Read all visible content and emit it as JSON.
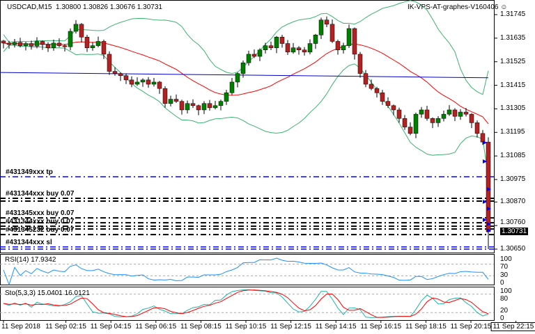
{
  "header": {
    "symbol": "USDCAD,M15",
    "ohlc": "1.30800 1.30826 1.30676 1.30731",
    "expert": "IK-VPS-AT-graphes-V160406",
    "expert_icon": "smiley-icon"
  },
  "price_axis": [
    "1.31745",
    "1.31635",
    "1.31525",
    "1.31415",
    "1.31305",
    "1.31195",
    "1.31085",
    "1.30975",
    "1.30870",
    "1.30760",
    "1.30650"
  ],
  "current_price": "1.30731",
  "time_axis": [
    "11 Sep 2018",
    "11 Sep 02:15",
    "11 Sep 04:15",
    "11 Sep 06:15",
    "11 Sep 08:15",
    "11 Sep 10:15",
    "11 Sep 12:15",
    "11 Sep 14:15",
    "11 Sep 16:15",
    "11 Sep 18:15",
    "11 Sep 20:15",
    "11 Sep 22:15"
  ],
  "orders": [
    {
      "label": "#431349xxx tp",
      "price": 1.30988,
      "color": "#0000ff"
    },
    {
      "label": "#431344xxx buy 0.07",
      "price": 1.30887,
      "color": "#000000"
    },
    {
      "label": "",
      "price": 1.30874,
      "color": "#000000"
    },
    {
      "label": "#431345xxx buy 0.07",
      "price": 1.30796,
      "color": "#000000"
    },
    {
      "label": "",
      "price": 1.30773,
      "color": "#000000"
    },
    {
      "label": "#431344xxx buy 0.07",
      "price": 1.30757,
      "color": "#000000"
    },
    {
      "label": "",
      "price": 1.30744,
      "color": "#000000"
    },
    {
      "label": "#431345232 buy 0.07",
      "price": 1.30718,
      "color": "#000000"
    },
    {
      "label": "#431344xxx sl",
      "price": 1.3066,
      "color": "#0000ff"
    },
    {
      "label": "",
      "price": 1.3065,
      "color": "#0000ff"
    }
  ],
  "rsi": {
    "label": "RSI(14) 17.9342",
    "levels": [
      "100",
      "70",
      "30",
      "0"
    ],
    "color": "#1e90ff"
  },
  "stoch": {
    "label": "Sto(5,3,3) 15.0401 16.0121",
    "levels": [
      "100",
      "80",
      "20",
      "0"
    ],
    "main_color": "#20b2aa",
    "signal_color": "#ff0000"
  },
  "colors": {
    "bull": "#008000",
    "bear": "#b22222",
    "band": "#3cb371",
    "ma": "#ff0000",
    "ma_long": "#0000cd"
  },
  "chart_data": {
    "type": "candlestick",
    "symbol": "USDCAD",
    "timeframe": "M15",
    "ylim": [
      1.3065,
      1.3179
    ],
    "closes": [
      1.31612,
      1.31605,
      1.31615,
      1.316,
      1.3161,
      1.31598,
      1.3162,
      1.31605,
      1.3159,
      1.31612,
      1.316,
      1.31595,
      1.31667,
      1.317,
      1.3164,
      1.3159,
      1.316,
      1.3162,
      1.3156,
      1.3148,
      1.3147,
      1.3146,
      1.3144,
      1.3142,
      1.3143,
      1.3144,
      1.3142,
      1.3143,
      1.314,
      1.3133,
      1.3135,
      1.3134,
      1.313,
      1.3133,
      1.3132,
      1.313,
      1.3133,
      1.3131,
      1.3132,
      1.3134,
      1.3138,
      1.3143,
      1.3147,
      1.3152,
      1.3156,
      1.3155,
      1.3158,
      1.316,
      1.3159,
      1.3164,
      1.3161,
      1.3157,
      1.3159,
      1.3158,
      1.3157,
      1.3161,
      1.3165,
      1.3172,
      1.317,
      1.3162,
      1.3158,
      1.316,
      1.3168,
      1.3156,
      1.3147,
      1.3142,
      1.314,
      1.3138,
      1.3134,
      1.3132,
      1.313,
      1.3126,
      1.3122,
      1.3119,
      1.3128,
      1.313,
      1.3126,
      1.3124,
      1.3126,
      1.3128,
      1.313,
      1.3127,
      1.3129,
      1.3128,
      1.3124,
      1.3119,
      1.3115,
      1.30731
    ],
    "ma_long": [
      1.31475,
      1.3145
    ]
  }
}
